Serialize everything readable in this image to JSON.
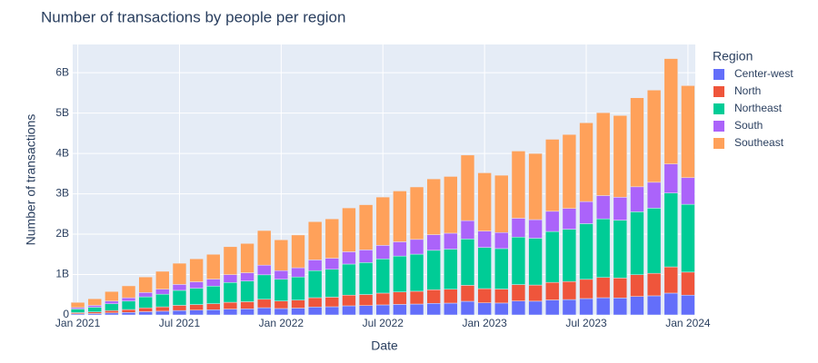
{
  "chart_data": {
    "type": "bar",
    "stacked": true,
    "title": "Number of transactions by people per region",
    "x_label": "Date",
    "y_label": "Number of transactions",
    "legend_title": "Region",
    "legend_position": "right",
    "grid": true,
    "x": [
      "2021-01",
      "2021-02",
      "2021-03",
      "2021-04",
      "2021-05",
      "2021-06",
      "2021-07",
      "2021-08",
      "2021-09",
      "2021-10",
      "2021-11",
      "2021-12",
      "2022-01",
      "2022-02",
      "2022-03",
      "2022-04",
      "2022-05",
      "2022-06",
      "2022-07",
      "2022-08",
      "2022-09",
      "2022-10",
      "2022-11",
      "2022-12",
      "2023-01",
      "2023-02",
      "2023-03",
      "2023-04",
      "2023-05",
      "2023-06",
      "2023-07",
      "2023-08",
      "2023-09",
      "2023-10",
      "2023-11",
      "2023-12",
      "2024-01"
    ],
    "xlim": [
      "2020-12-22",
      "2024-01-14"
    ],
    "xticks": [
      {
        "value": "2021-01",
        "label": "Jan 2021"
      },
      {
        "value": "2021-07",
        "label": "Jul 2021"
      },
      {
        "value": "2022-01",
        "label": "Jan 2022"
      },
      {
        "value": "2022-07",
        "label": "Jul 2022"
      },
      {
        "value": "2023-01",
        "label": "Jan 2023"
      },
      {
        "value": "2023-07",
        "label": "Jul 2023"
      },
      {
        "value": "2024-01",
        "label": "Jan 2024"
      }
    ],
    "ylim": [
      0,
      6700000000.0
    ],
    "yticks": [
      0,
      {
        "value": 1000000000.0,
        "label": "1B"
      },
      {
        "value": 2000000000.0,
        "label": "2B"
      },
      {
        "value": 3000000000.0,
        "label": "3B"
      },
      {
        "value": 4000000000.0,
        "label": "4B"
      },
      {
        "value": 5000000000.0,
        "label": "5B"
      },
      {
        "value": 6000000000.0,
        "label": "6B"
      }
    ],
    "series": [
      {
        "name": "Center-west",
        "color": "#636efa",
        "values": [
          26000000.0,
          34000000.0,
          49000000.0,
          61000000.0,
          80000000.0,
          92000000.0,
          109000000.0,
          118000000.0,
          128000000.0,
          144000000.0,
          150000000.0,
          178000000.0,
          158000000.0,
          168000000.0,
          196000000.0,
          202000000.0,
          225000000.0,
          232000000.0,
          248000000.0,
          261000000.0,
          269000000.0,
          286000000.0,
          292000000.0,
          337000000.0,
          299000000.0,
          294000000.0,
          345000000.0,
          340000000.0,
          370000000.0,
          380000000.0,
          405000000.0,
          426000000.0,
          420000000.0,
          457000000.0,
          473000000.0,
          540000000.0,
          490000000.0
        ]
      },
      {
        "name": "North",
        "color": "#ef553b",
        "values": [
          31000000.0,
          40000000.0,
          58000000.0,
          72000000.0,
          94000000.0,
          108000000.0,
          128000000.0,
          139000000.0,
          150000000.0,
          169000000.0,
          177000000.0,
          209000000.0,
          186000000.0,
          198000000.0,
          231000000.0,
          238000000.0,
          265000000.0,
          273000000.0,
          292000000.0,
          307000000.0,
          317000000.0,
          337000000.0,
          343000000.0,
          396000000.0,
          352000000.0,
          346000000.0,
          406000000.0,
          400000000.0,
          435000000.0,
          447000000.0,
          476000000.0,
          501000000.0,
          494000000.0,
          538000000.0,
          557000000.0,
          650000000.0,
          570000000.0
        ]
      },
      {
        "name": "Northeast",
        "color": "#00cc96",
        "values": [
          90000000.0,
          116000000.0,
          168000000.0,
          209000000.0,
          273000000.0,
          313000000.0,
          371000000.0,
          403000000.0,
          435000000.0,
          490000000.0,
          513000000.0,
          606000000.0,
          539000000.0,
          574000000.0,
          670000000.0,
          690000000.0,
          769000000.0,
          792000000.0,
          847000000.0,
          890000000.0,
          919000000.0,
          977000000.0,
          995000000.0,
          1148000000.0,
          1021000000.0,
          1003000000.0,
          1177000000.0,
          1160000000.0,
          1262000000.0,
          1296000000.0,
          1380000000.0,
          1453000000.0,
          1433000000.0,
          1560000000.0,
          1615000000.0,
          1830000000.0,
          1680000000.0
        ]
      },
      {
        "name": "South",
        "color": "#ab63fa",
        "values": [
          36000000.0,
          46000000.0,
          67000000.0,
          83000000.0,
          108000000.0,
          124000000.0,
          147000000.0,
          160000000.0,
          173000000.0,
          194000000.0,
          204000000.0,
          240000000.0,
          214000000.0,
          228000000.0,
          266000000.0,
          274000000.0,
          305000000.0,
          314000000.0,
          336000000.0,
          353000000.0,
          365000000.0,
          388000000.0,
          394000000.0,
          455000000.0,
          405000000.0,
          398000000.0,
          467000000.0,
          460000000.0,
          500000000.0,
          514000000.0,
          547000000.0,
          576000000.0,
          568000000.0,
          619000000.0,
          641000000.0,
          720000000.0,
          660000000.0
        ]
      },
      {
        "name": "Southeast",
        "color": "#FFA15A",
        "values": [
          127000000.0,
          164000000.0,
          238000000.0,
          295000000.0,
          385000000.0,
          443000000.0,
          525000000.0,
          570000000.0,
          615000000.0,
          693000000.0,
          726000000.0,
          857000000.0,
          763000000.0,
          812000000.0,
          947000000.0,
          976000000.0,
          1087000000.0,
          1119000000.0,
          1197000000.0,
          1259000000.0,
          1300000000.0,
          1382000000.0,
          1406000000.0,
          1624000000.0,
          1443000000.0,
          1419000000.0,
          1665000000.0,
          1640000000.0,
          1784000000.0,
          1833000000.0,
          1952000000.0,
          2054000000.0,
          2025000000.0,
          2206000000.0,
          2284000000.0,
          2610000000.0,
          2280000000.0
        ]
      }
    ]
  }
}
